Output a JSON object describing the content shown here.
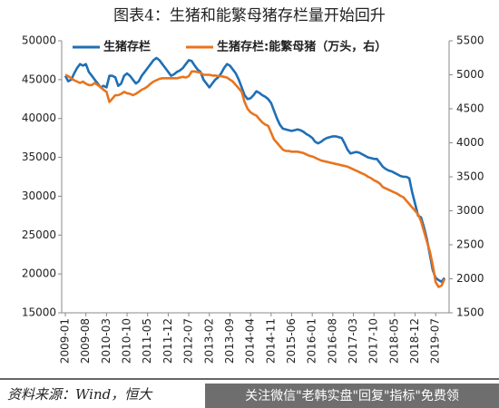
{
  "chart_data": {
    "type": "line",
    "title": "图表4：生猪和能繁母猪存栏量开始回升",
    "source": "资料来源：Wind，恒大",
    "watermark": "关注微信\"老韩实盘\"回复\"指标\"免费领",
    "categories": [
      "2009-01",
      null,
      null,
      null,
      null,
      null,
      null,
      "2009-08",
      null,
      null,
      null,
      null,
      null,
      null,
      "2010-03",
      null,
      null,
      null,
      null,
      null,
      null,
      "2010-10",
      null,
      null,
      null,
      null,
      null,
      null,
      "2011-05",
      null,
      null,
      null,
      null,
      null,
      null,
      "2011-12",
      null,
      null,
      null,
      null,
      null,
      null,
      "2012-07",
      null,
      null,
      null,
      null,
      null,
      null,
      "2013-02",
      null,
      null,
      null,
      null,
      null,
      null,
      "2013-09",
      null,
      null,
      null,
      null,
      null,
      null,
      "2014-04",
      null,
      null,
      null,
      null,
      null,
      null,
      "2014-11",
      null,
      null,
      null,
      null,
      null,
      null,
      "2015-06",
      null,
      null,
      null,
      null,
      null,
      null,
      "2016-01",
      null,
      null,
      null,
      null,
      null,
      null,
      "2016-08",
      null,
      null,
      null,
      null,
      null,
      null,
      "2017-03",
      null,
      null,
      null,
      null,
      null,
      null,
      "2017-10",
      null,
      null,
      null,
      null,
      null,
      null,
      "2018-05",
      null,
      null,
      null,
      null,
      null,
      null,
      "2018-12",
      null,
      null,
      null,
      null,
      null,
      null,
      "2019-07",
      null,
      null,
      null
    ],
    "series": [
      {
        "name": "生猪存栏",
        "color": "#1f6fb5",
        "values": [
          45500,
          44800,
          45000,
          45800,
          46500,
          47000,
          46800,
          47000,
          46000,
          45500,
          45000,
          44500,
          44000,
          44200,
          44000,
          45500,
          45500,
          45300,
          44200,
          44500,
          45500,
          45800,
          45500,
          45000,
          44500,
          44800,
          45500,
          46000,
          46500,
          47000,
          47500,
          47800,
          47500,
          47000,
          46500,
          46000,
          45500,
          45700,
          46000,
          46200,
          46500,
          47000,
          47500,
          47400,
          46800,
          46300,
          46000,
          45000,
          44500,
          44000,
          44500,
          45000,
          45300,
          45800,
          46500,
          47000,
          46800,
          46300,
          45800,
          45000,
          44000,
          43000,
          42500,
          42600,
          43000,
          43500,
          43300,
          43000,
          42800,
          42500,
          42000,
          41000,
          40000,
          39200,
          38700,
          38600,
          38500,
          38400,
          38500,
          38600,
          38500,
          38300,
          38000,
          37800,
          37500,
          37000,
          36800,
          37000,
          37300,
          37500,
          37600,
          37700,
          37700,
          37600,
          37500,
          36800,
          36000,
          35500,
          35600,
          35700,
          35600,
          35400,
          35200,
          35000,
          34900,
          34800,
          34800,
          34300,
          33800,
          33500,
          33300,
          33200,
          33000,
          32800,
          32600,
          32500,
          32500,
          32300,
          30500,
          29000,
          27500,
          27300,
          26000,
          24500,
          22500,
          20500,
          19500,
          19200,
          19000,
          19500
        ]
      },
      {
        "name": "生猪存栏:能繁母猪（万头，右）",
        "color": "#e8741e",
        "axis": "y2",
        "values": [
          5000,
          4980,
          4950,
          4920,
          4900,
          4880,
          4900,
          4870,
          4850,
          4850,
          4880,
          4850,
          4820,
          4780,
          4750,
          4600,
          4650,
          4700,
          4700,
          4720,
          4750,
          4730,
          4720,
          4700,
          4720,
          4750,
          4780,
          4800,
          4830,
          4870,
          4900,
          4920,
          4940,
          4950,
          4950,
          4950,
          4950,
          4950,
          4950,
          4960,
          4970,
          4960,
          4980,
          5050,
          5050,
          5040,
          5030,
          5000,
          5000,
          5000,
          4990,
          4990,
          4980,
          4980,
          4970,
          4960,
          4930,
          4900,
          4850,
          4800,
          4750,
          4600,
          4500,
          4450,
          4420,
          4400,
          4350,
          4300,
          4270,
          4250,
          4150,
          4050,
          4000,
          3950,
          3900,
          3880,
          3880,
          3870,
          3870,
          3870,
          3860,
          3850,
          3830,
          3810,
          3800,
          3780,
          3760,
          3740,
          3730,
          3720,
          3710,
          3700,
          3690,
          3680,
          3670,
          3660,
          3650,
          3630,
          3610,
          3590,
          3570,
          3550,
          3530,
          3500,
          3480,
          3450,
          3430,
          3400,
          3350,
          3330,
          3310,
          3290,
          3270,
          3250,
          3220,
          3200,
          3150,
          3100,
          3050,
          3000,
          2950,
          2850,
          2700,
          2550,
          2400,
          2200,
          1950,
          1880,
          1900,
          2000
        ]
      }
    ],
    "ylim": [
      15000,
      50000
    ],
    "yticks": [
      15000,
      20000,
      25000,
      30000,
      35000,
      40000,
      45000,
      50000
    ],
    "y2lim": [
      1500,
      5500
    ],
    "y2ticks": [
      1500,
      2000,
      2500,
      3000,
      3500,
      4000,
      4500,
      5000,
      5500
    ],
    "legend": "top-left"
  }
}
